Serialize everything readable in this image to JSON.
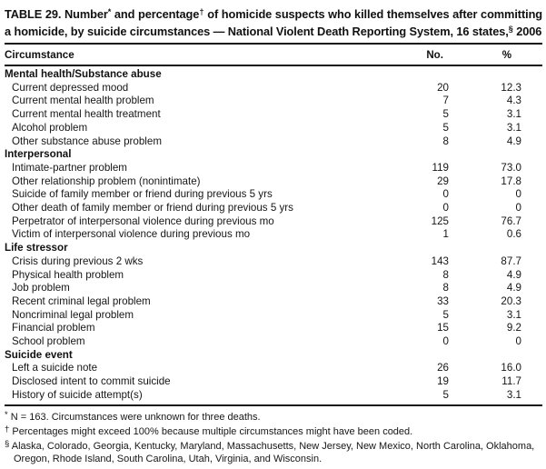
{
  "title": {
    "full_text": "TABLE 29. Number* and percentage† of homicide suspects who killed themselves after committing a homicide, by suicide circumstances — National Violent Death Reporting System, 16 states,§ 2006",
    "runs": [
      {
        "t": "TABLE 29. Number",
        "sup": false
      },
      {
        "t": "*",
        "sup": true
      },
      {
        "t": " and percentage",
        "sup": false
      },
      {
        "t": "†",
        "sup": true
      },
      {
        "t": " of homicide suspects who killed themselves after committing a homicide, by suicide circumstances — National Violent Death Reporting System, 16 states,",
        "sup": false
      },
      {
        "t": "§",
        "sup": true
      },
      {
        "t": " 2006",
        "sup": false
      }
    ]
  },
  "table": {
    "columns": [
      "Circumstance",
      "No.",
      "%"
    ],
    "sections": [
      {
        "header": "Mental health/Substance abuse",
        "rows": [
          {
            "label": "Current depressed mood",
            "no": "20",
            "pct": "12.3"
          },
          {
            "label": "Current mental health problem",
            "no": "7",
            "pct": "4.3"
          },
          {
            "label": "Current mental health treatment",
            "no": "5",
            "pct": "3.1"
          },
          {
            "label": "Alcohol problem",
            "no": "5",
            "pct": "3.1"
          },
          {
            "label": "Other substance abuse problem",
            "no": "8",
            "pct": "4.9"
          }
        ]
      },
      {
        "header": "Interpersonal",
        "rows": [
          {
            "label": "Intimate-partner problem",
            "no": "119",
            "pct": "73.0"
          },
          {
            "label": "Other relationship problem (nonintimate)",
            "no": "29",
            "pct": "17.8"
          },
          {
            "label": "Suicide of family member or friend during previous 5 yrs",
            "no": "0",
            "pct": "0"
          },
          {
            "label": "Other death of family member or friend during previous 5 yrs",
            "no": "0",
            "pct": "0"
          },
          {
            "label": "Perpetrator of interpersonal violence during previous mo",
            "no": "125",
            "pct": "76.7"
          },
          {
            "label": "Victim of interpersonal violence during previous mo",
            "no": "1",
            "pct": "0.6"
          }
        ]
      },
      {
        "header": "Life stressor",
        "rows": [
          {
            "label": "Crisis during previous 2 wks",
            "no": "143",
            "pct": "87.7"
          },
          {
            "label": "Physical health problem",
            "no": "8",
            "pct": "4.9"
          },
          {
            "label": "Job problem",
            "no": "8",
            "pct": "4.9"
          },
          {
            "label": "Recent criminal legal problem",
            "no": "33",
            "pct": "20.3"
          },
          {
            "label": "Noncriminal legal problem",
            "no": "5",
            "pct": "3.1"
          },
          {
            "label": "Financial problem",
            "no": "15",
            "pct": "9.2"
          },
          {
            "label": "School problem",
            "no": "0",
            "pct": "0"
          }
        ]
      },
      {
        "header": "Suicide event",
        "rows": [
          {
            "label": "Left a suicide note",
            "no": "26",
            "pct": "16.0"
          },
          {
            "label": "Disclosed intent to commit suicide",
            "no": "19",
            "pct": "11.7"
          },
          {
            "label": "History of suicide attempt(s)",
            "no": "5",
            "pct": "3.1"
          }
        ]
      }
    ]
  },
  "footnotes": [
    {
      "marker": "*",
      "text": "N = 163. Circumstances were unknown for three deaths."
    },
    {
      "marker": "†",
      "text": "Percentages might exceed 100% because multiple circumstances might have been coded."
    },
    {
      "marker": "§",
      "text": "Alaska, Colorado, Georgia, Kentucky, Maryland, Massachusetts, New Jersey, New Mexico, North Carolina, Oklahoma, Oregon, Rhode Island, South Carolina, Utah, Virginia, and Wisconsin."
    }
  ]
}
